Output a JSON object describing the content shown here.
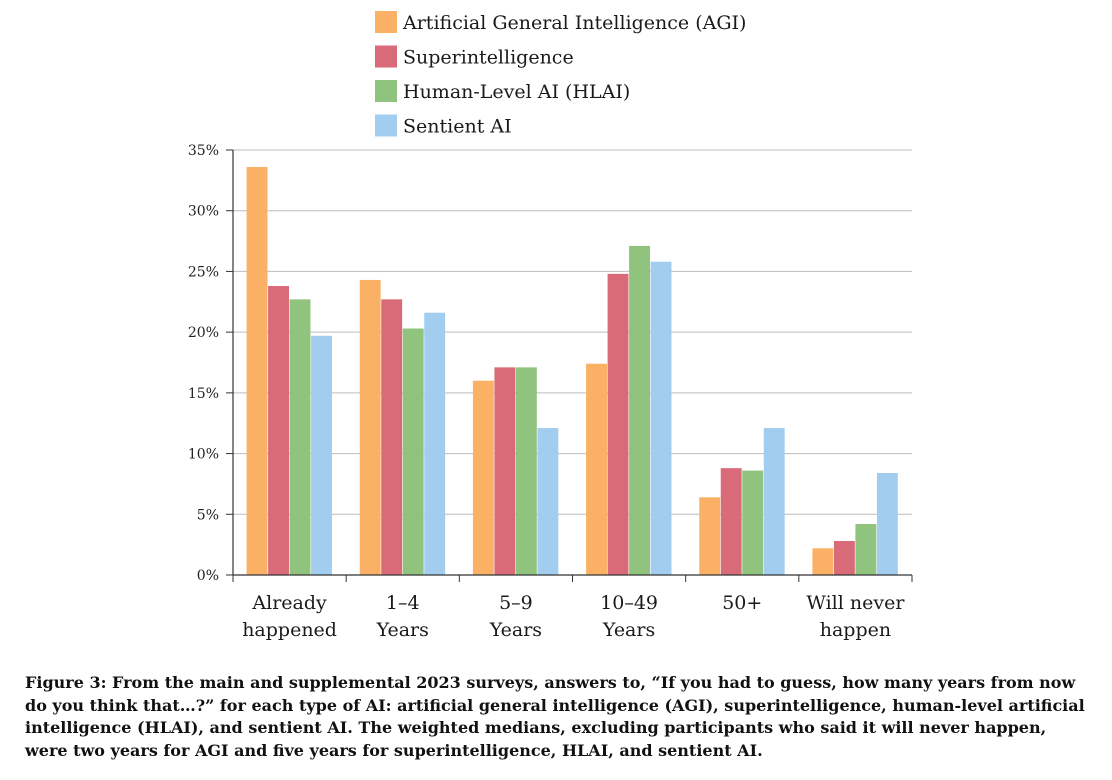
{
  "chart_data": {
    "type": "bar",
    "title": "",
    "xlabel": "",
    "ylabel": "",
    "ylim": [
      0,
      35
    ],
    "yticks": [
      0,
      5,
      10,
      15,
      20,
      25,
      30,
      35
    ],
    "ytick_labels": [
      "0%",
      "5%",
      "10%",
      "15%",
      "20%",
      "25%",
      "30%",
      "35%"
    ],
    "grid": true,
    "legend_position": "top-center",
    "categories": [
      [
        "Already",
        "happened"
      ],
      [
        "1–4",
        "Years"
      ],
      [
        "5–9",
        "Years"
      ],
      [
        "10–49",
        "Years"
      ],
      [
        "50+"
      ],
      [
        "Will never",
        "happen"
      ]
    ],
    "series": [
      {
        "name": "Artificial General Intelligence (AGI)",
        "color": "#FBB165",
        "values": [
          33.6,
          24.3,
          16.0,
          17.4,
          6.4,
          2.2
        ]
      },
      {
        "name": "Superintelligence",
        "color": "#D96B79",
        "values": [
          23.8,
          22.7,
          17.1,
          24.8,
          8.8,
          2.8
        ]
      },
      {
        "name": "Human-Level AI (HLAI)",
        "color": "#90C47E",
        "values": [
          22.7,
          20.3,
          17.1,
          27.1,
          8.6,
          4.2
        ]
      },
      {
        "name": "Sentient AI",
        "color": "#A3CDEF",
        "values": [
          19.7,
          21.6,
          12.1,
          25.8,
          12.1,
          8.4
        ]
      }
    ]
  },
  "caption": {
    "text": "Figure 3: From the main and supplemental 2023 surveys, answers to, “If you had to guess, how many years from now do you think that…?” for each type of AI: artificial general intelligence (AGI), superintelligence, human-level artificial intelligence (HLAI), and sentient AI. The weighted medians, excluding participants who said it will never happen, were two years for AGI and five years for superintelligence, HLAI, and sentient AI."
  }
}
